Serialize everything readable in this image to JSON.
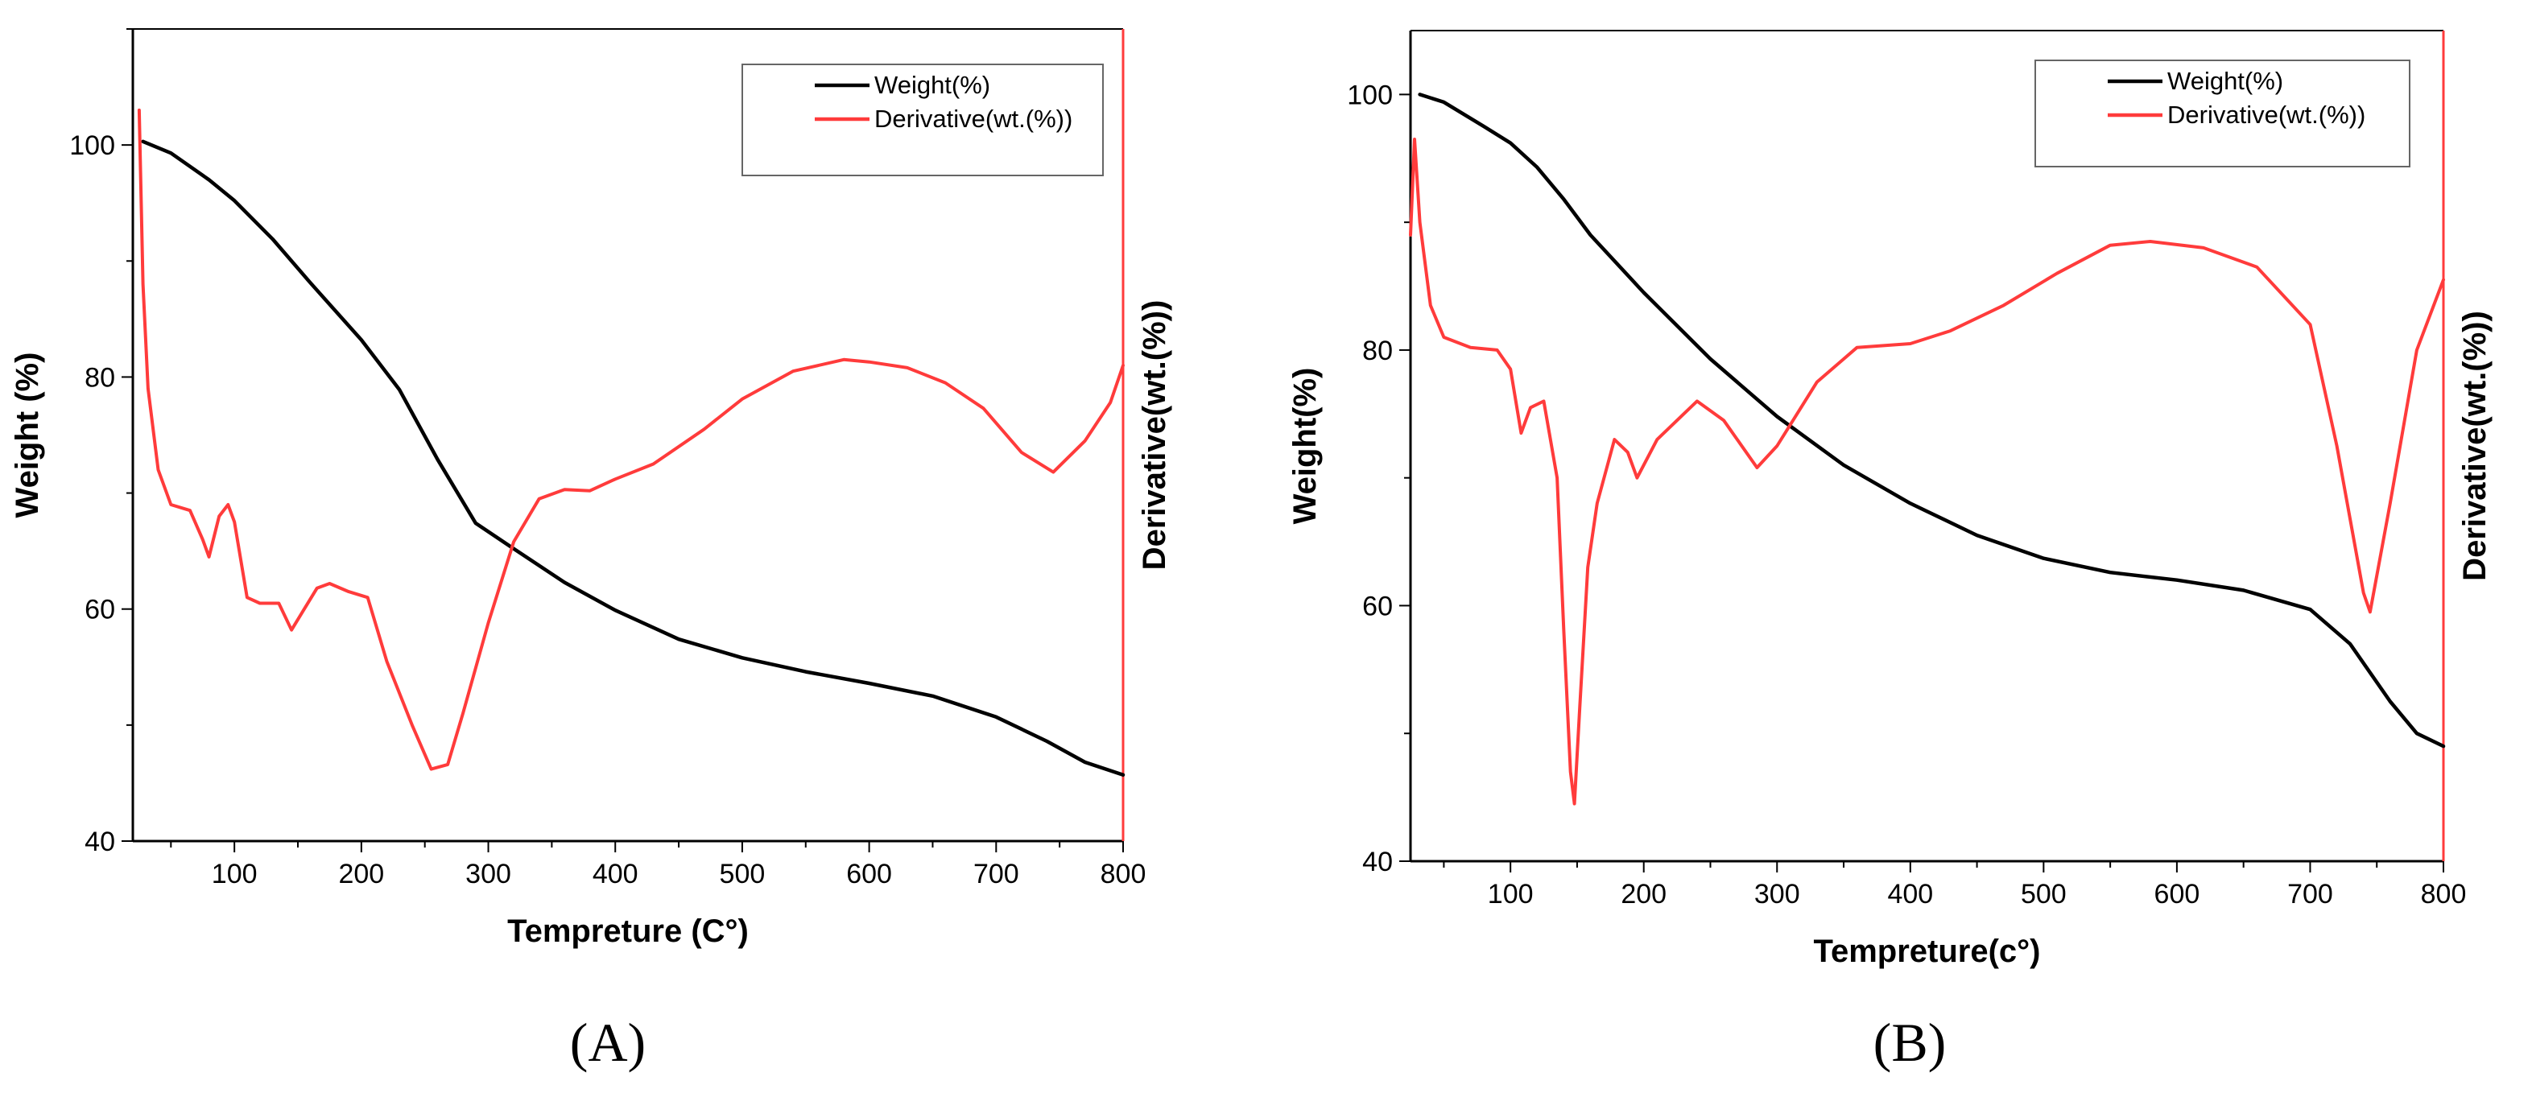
{
  "chart_data": [
    {
      "panel_label": "(A)",
      "type": "line",
      "xlabel": "Tempreture (C°)",
      "ylabel_left": "Weight (%)",
      "ylabel_right": "Derivative(wt.(%))",
      "xlim": [
        20,
        800
      ],
      "ylim": [
        40,
        110
      ],
      "xticks": [
        100,
        200,
        300,
        400,
        500,
        600,
        700,
        800
      ],
      "yticks": [
        40,
        60,
        80,
        100
      ],
      "legend_position": "top-right",
      "series": [
        {
          "name": "Weight(%)",
          "color": "#000000",
          "x": [
            28,
            50,
            80,
            100,
            130,
            160,
            200,
            230,
            260,
            290,
            320,
            360,
            400,
            450,
            500,
            550,
            600,
            650,
            700,
            740,
            770,
            800
          ],
          "y": [
            100.3,
            99.3,
            97,
            95.2,
            91.9,
            88.1,
            83.2,
            78.9,
            72.9,
            67.4,
            65.2,
            62.3,
            59.9,
            57.4,
            55.8,
            54.6,
            53.6,
            52.5,
            50.7,
            48.6,
            46.8,
            45.7
          ]
        },
        {
          "name": "Derivative(wt.(%))",
          "color": "#ff3b3b",
          "x": [
            25,
            28,
            32,
            40,
            50,
            65,
            75,
            80,
            88,
            95,
            100,
            110,
            120,
            135,
            145,
            155,
            165,
            175,
            190,
            205,
            220,
            240,
            255,
            268,
            280,
            300,
            320,
            340,
            360,
            380,
            400,
            430,
            470,
            500,
            540,
            580,
            600,
            630,
            660,
            690,
            720,
            745,
            770,
            790,
            800
          ],
          "y": [
            103,
            88,
            79,
            72,
            69,
            68.5,
            66,
            64.5,
            68,
            69,
            67.5,
            61,
            60.5,
            60.5,
            58.2,
            60,
            61.8,
            62.2,
            61.5,
            61,
            55.5,
            50,
            46.2,
            46.6,
            51,
            58.8,
            65.8,
            69.5,
            70.3,
            70.2,
            71.2,
            72.5,
            75.5,
            78.1,
            80.5,
            81.5,
            81.3,
            80.8,
            79.5,
            77.3,
            73.5,
            71.8,
            74.5,
            77.8,
            81
          ]
        }
      ]
    },
    {
      "panel_label": "(B)",
      "type": "line",
      "xlabel": "Tempreture(c°)",
      "ylabel_left": "Weight(%)",
      "ylabel_right": "Derivative(wt.(%))",
      "xlim": [
        25,
        800
      ],
      "ylim": [
        40,
        105
      ],
      "xticks": [
        100,
        200,
        300,
        400,
        500,
        600,
        700,
        800
      ],
      "yticks": [
        40,
        60,
        80,
        100
      ],
      "legend_position": "top-right",
      "series": [
        {
          "name": "Weight(%)",
          "color": "#000000",
          "x": [
            32,
            50,
            80,
            100,
            120,
            140,
            160,
            200,
            250,
            300,
            350,
            400,
            450,
            500,
            550,
            600,
            650,
            700,
            730,
            760,
            780,
            800
          ],
          "y": [
            100,
            99.4,
            97.5,
            96.2,
            94.3,
            91.8,
            89,
            84.5,
            79.3,
            74.8,
            71,
            68,
            65.5,
            63.7,
            62.6,
            62,
            61.2,
            59.7,
            57,
            52.5,
            50,
            49
          ]
        },
        {
          "name": "Derivative(wt.(%))",
          "color": "#ff3b3b",
          "x": [
            25,
            28,
            32,
            40,
            50,
            70,
            90,
            100,
            108,
            115,
            125,
            135,
            140,
            145,
            148,
            152,
            158,
            165,
            178,
            188,
            195,
            210,
            240,
            260,
            285,
            300,
            330,
            360,
            400,
            430,
            470,
            510,
            550,
            580,
            620,
            660,
            700,
            720,
            740,
            745,
            760,
            780,
            800
          ],
          "y": [
            89,
            96.5,
            90,
            83.5,
            81,
            80.2,
            80,
            78.5,
            73.5,
            75.5,
            76,
            70,
            58,
            47,
            44.5,
            52,
            63,
            68,
            73,
            72,
            70,
            73,
            76,
            74.5,
            70.8,
            72.5,
            77.5,
            80.2,
            80.5,
            81.5,
            83.5,
            86,
            88.2,
            88.5,
            88,
            86.5,
            82,
            72.5,
            61,
            59.5,
            68,
            80,
            85.5
          ]
        }
      ]
    }
  ]
}
